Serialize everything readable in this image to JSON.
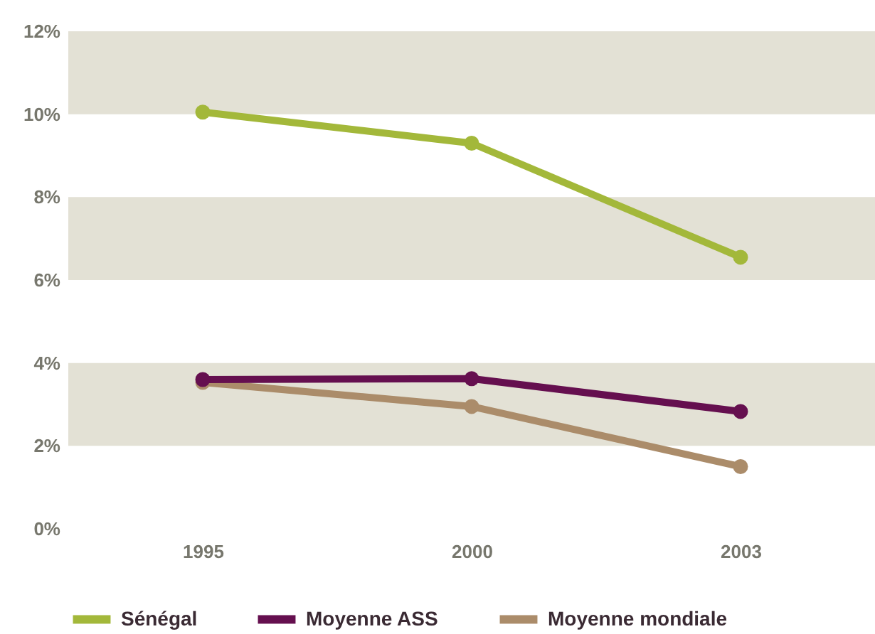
{
  "chart_data": {
    "type": "line",
    "categories": [
      "1995",
      "2000",
      "2003"
    ],
    "series": [
      {
        "name": "Sénégal",
        "color": "#a3b83a",
        "values": [
          10.05,
          9.3,
          6.55
        ]
      },
      {
        "name": "Moyenne ASS",
        "color": "#650f4f",
        "values": [
          3.6,
          3.62,
          2.83
        ]
      },
      {
        "name": "Moyenne mondiale",
        "color": "#ab8c6a",
        "values": [
          3.53,
          2.95,
          1.5
        ]
      }
    ],
    "ylim": [
      0,
      12
    ],
    "yticks": [
      {
        "value": 0,
        "label": "0%"
      },
      {
        "value": 2,
        "label": "2%"
      },
      {
        "value": 4,
        "label": "4%"
      },
      {
        "value": 6,
        "label": "6%"
      },
      {
        "value": 8,
        "label": "8%"
      },
      {
        "value": 10,
        "label": "10%"
      },
      {
        "value": 12,
        "label": "12%"
      }
    ],
    "bands": [
      {
        "axis": "y",
        "from": 10,
        "to": 12,
        "color": "#e3e1d5"
      },
      {
        "axis": "y",
        "from": 6,
        "to": 8,
        "color": "#e3e1d5"
      },
      {
        "axis": "y",
        "from": 2,
        "to": 4,
        "color": "#e3e1d5"
      }
    ],
    "marker": "circle",
    "line_style": "solid",
    "legend": "bottom left"
  }
}
